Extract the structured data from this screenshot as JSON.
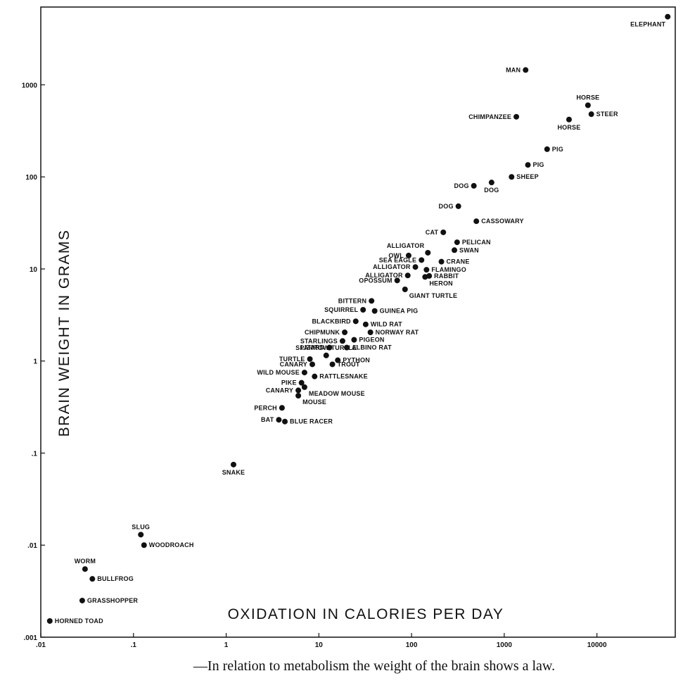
{
  "chart_data": {
    "type": "scatter",
    "xlabel": "OXIDATION IN CALORIES PER DAY",
    "ylabel": "BRAIN WEIGHT IN GRAMS",
    "caption": "—In relation to metabolism the weight of the brain shows a law.",
    "x_scale": "log",
    "y_scale": "log",
    "xlim": [
      0.01,
      70000
    ],
    "ylim": [
      0.001,
      7000
    ],
    "x_ticks": [
      {
        "value": 0.01,
        "label": ".01"
      },
      {
        "value": 0.1,
        "label": ".1"
      },
      {
        "value": 1,
        "label": "1"
      },
      {
        "value": 10,
        "label": "10"
      },
      {
        "value": 100,
        "label": "100"
      },
      {
        "value": 1000,
        "label": "1000"
      },
      {
        "value": 10000,
        "label": "10000"
      }
    ],
    "y_ticks": [
      {
        "value": 0.001,
        "label": ".001"
      },
      {
        "value": 0.01,
        "label": ".01"
      },
      {
        "value": 0.1,
        "label": ".1"
      },
      {
        "value": 1,
        "label": "1"
      },
      {
        "value": 10,
        "label": "10"
      },
      {
        "value": 100,
        "label": "100"
      },
      {
        "value": 1000,
        "label": "1000"
      }
    ],
    "grid": false,
    "legend": "none",
    "points": [
      {
        "label": "ELEPHANT",
        "x": 58000,
        "y": 5500,
        "label_side": "below-left"
      },
      {
        "label": "MAN",
        "x": 1700,
        "y": 1450,
        "label_side": "left"
      },
      {
        "label": "HORSE",
        "x": 8000,
        "y": 600,
        "label_side": "above"
      },
      {
        "label": "STEER",
        "x": 8700,
        "y": 480,
        "label_side": "right"
      },
      {
        "label": "CHIMPANZEE",
        "x": 1350,
        "y": 450,
        "label_side": "left"
      },
      {
        "label": "HORSE",
        "x": 5000,
        "y": 420,
        "label_side": "below"
      },
      {
        "label": "PIG",
        "x": 2900,
        "y": 200,
        "label_side": "right"
      },
      {
        "label": "PIG",
        "x": 1800,
        "y": 135,
        "label_side": "right"
      },
      {
        "label": "SHEEP",
        "x": 1200,
        "y": 100,
        "label_side": "right"
      },
      {
        "label": "DOG",
        "x": 470,
        "y": 80,
        "label_side": "left"
      },
      {
        "label": "DOG",
        "x": 730,
        "y": 87,
        "label_side": "below"
      },
      {
        "label": "DOG",
        "x": 320,
        "y": 48,
        "label_side": "left"
      },
      {
        "label": "CASSOWARY",
        "x": 500,
        "y": 33,
        "label_side": "right"
      },
      {
        "label": "CAT",
        "x": 220,
        "y": 25,
        "label_side": "left"
      },
      {
        "label": "ALLIGATOR",
        "x": 150,
        "y": 15,
        "label_side": "above-left"
      },
      {
        "label": "PELICAN",
        "x": 310,
        "y": 19.5,
        "label_side": "right"
      },
      {
        "label": "SWAN",
        "x": 290,
        "y": 16,
        "label_side": "right"
      },
      {
        "label": "OWL",
        "x": 93,
        "y": 14,
        "label_side": "left"
      },
      {
        "label": "SEA EAGLE",
        "x": 128,
        "y": 12.5,
        "label_side": "left"
      },
      {
        "label": "CRANE",
        "x": 210,
        "y": 12,
        "label_side": "right"
      },
      {
        "label": "ALLIGATOR",
        "x": 110,
        "y": 10.5,
        "label_side": "left"
      },
      {
        "label": "FLAMINGO",
        "x": 145,
        "y": 9.8,
        "label_side": "right"
      },
      {
        "label": "RABBIT",
        "x": 155,
        "y": 8.4,
        "label_side": "right"
      },
      {
        "label": "ALLIGATOR",
        "x": 91,
        "y": 8.5,
        "label_side": "left"
      },
      {
        "label": "HERON",
        "x": 140,
        "y": 8.2,
        "label_side": "below-right"
      },
      {
        "label": "OPOSSUM",
        "x": 70,
        "y": 7.5,
        "label_side": "left"
      },
      {
        "label": "BITTERN",
        "x": 37,
        "y": 4.5,
        "label_side": "left"
      },
      {
        "label": "GIANT TURTLE",
        "x": 85,
        "y": 6,
        "label_side": "below-right"
      },
      {
        "label": "SQUIRREL",
        "x": 30,
        "y": 3.6,
        "label_side": "left"
      },
      {
        "label": "GUINEA PIG",
        "x": 40,
        "y": 3.5,
        "label_side": "right"
      },
      {
        "label": "BLACKBIRD",
        "x": 25,
        "y": 2.7,
        "label_side": "left"
      },
      {
        "label": "WILD RAT",
        "x": 32,
        "y": 2.5,
        "label_side": "right"
      },
      {
        "label": "CHIPMUNK",
        "x": 19,
        "y": 2.05,
        "label_side": "left"
      },
      {
        "label": "NORWAY RAT",
        "x": 36,
        "y": 2.05,
        "label_side": "right"
      },
      {
        "label": "STARLINGS",
        "x": 18,
        "y": 1.65,
        "label_side": "left"
      },
      {
        "label": "PIGEON",
        "x": 24,
        "y": 1.7,
        "label_side": "right"
      },
      {
        "label": "LIZARD",
        "x": 13,
        "y": 1.4,
        "label_side": "left"
      },
      {
        "label": "ALBINO RAT",
        "x": 20,
        "y": 1.4,
        "label_side": "right"
      },
      {
        "label": "SPARROW TURTLE",
        "x": 12,
        "y": 1.15,
        "label_side": "above"
      },
      {
        "label": "TURTLE",
        "x": 8,
        "y": 1.05,
        "label_side": "left"
      },
      {
        "label": "PYTHON",
        "x": 16,
        "y": 1.02,
        "label_side": "right"
      },
      {
        "label": "CANARY",
        "x": 8.5,
        "y": 0.92,
        "label_side": "left"
      },
      {
        "label": "TROUT",
        "x": 14,
        "y": 0.92,
        "label_side": "right"
      },
      {
        "label": "WILD MOUSE",
        "x": 7,
        "y": 0.75,
        "label_side": "left"
      },
      {
        "label": "RATTLESNAKE",
        "x": 9,
        "y": 0.68,
        "label_side": "right"
      },
      {
        "label": "PIKE",
        "x": 6.5,
        "y": 0.58,
        "label_side": "left"
      },
      {
        "label": "CANARY",
        "x": 6,
        "y": 0.48,
        "label_side": "left"
      },
      {
        "label": "MEADOW MOUSE",
        "x": 7,
        "y": 0.52,
        "label_side": "below-right"
      },
      {
        "label": "MOUSE",
        "x": 6,
        "y": 0.42,
        "label_side": "below-right"
      },
      {
        "label": "PERCH",
        "x": 4,
        "y": 0.31,
        "label_side": "left"
      },
      {
        "label": "BAT",
        "x": 3.7,
        "y": 0.23,
        "label_side": "left"
      },
      {
        "label": "BLUE RACER",
        "x": 4.3,
        "y": 0.22,
        "label_side": "right"
      },
      {
        "label": "SNAKE",
        "x": 1.2,
        "y": 0.075,
        "label_side": "below"
      },
      {
        "label": "SLUG",
        "x": 0.12,
        "y": 0.013,
        "label_side": "above"
      },
      {
        "label": "WOODROACH",
        "x": 0.13,
        "y": 0.01,
        "label_side": "right"
      },
      {
        "label": "WORM",
        "x": 0.03,
        "y": 0.0055,
        "label_side": "above"
      },
      {
        "label": "BULLFROG",
        "x": 0.036,
        "y": 0.0043,
        "label_side": "right"
      },
      {
        "label": "GRASSHOPPER",
        "x": 0.028,
        "y": 0.0025,
        "label_side": "right"
      },
      {
        "label": "HORNED TOAD",
        "x": 0.0125,
        "y": 0.0015,
        "label_side": "right"
      }
    ]
  }
}
